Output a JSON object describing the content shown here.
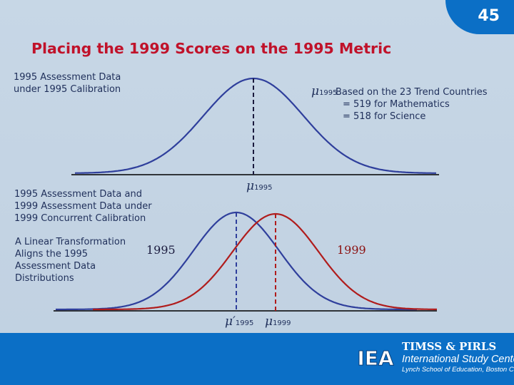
{
  "slide": {
    "number": "45",
    "title": "Placing the 1999 Scores on the 1995 Metric"
  },
  "labels": {
    "top_left": [
      "1995 Assessment Data",
      "under 1995 Calibration"
    ],
    "note": [
      "Based on the 23 Trend Countries",
      "= 519 for Mathematics",
      "= 518 for Science"
    ],
    "mid_left": [
      "1995 Assessment Data and",
      "1999 Assessment Data under",
      "1999 Concurrent Calibration"
    ],
    "transform": [
      "A Linear Transformation",
      "Aligns the 1995",
      "Assessment Data",
      "Distributions"
    ],
    "year_1995": "1995",
    "year_1999": "1999"
  },
  "symbols": {
    "mu": "μ",
    "mu_prime": "μ′",
    "sub_1995": "1995",
    "sub_1999": "1999"
  },
  "colors": {
    "blue_curve": "#2f3f9c",
    "red_curve": "#b01c1c",
    "title": "#c0122a",
    "brand": "#0b6fc6"
  },
  "footer": {
    "logo_text": "IEA",
    "line1": "TIMSS & PIRLS",
    "line2": "International Study Center",
    "line3": "Lynch School of Education, Boston College"
  }
}
